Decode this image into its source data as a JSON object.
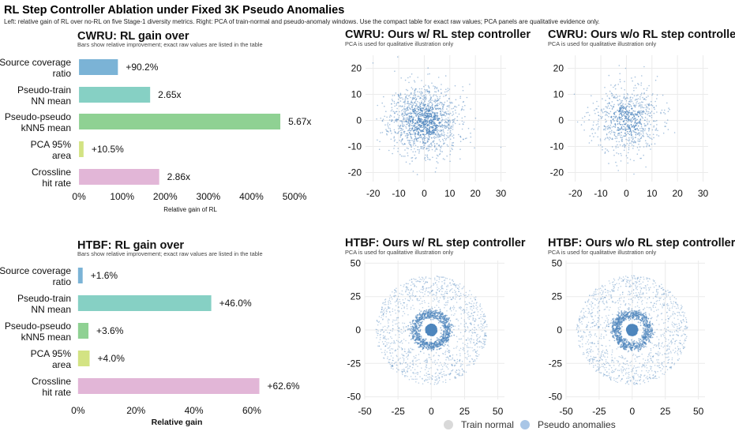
{
  "figure": {
    "title": "RL Step Controller Ablation under Fixed 3K Pseudo Anomalies",
    "subtitle": "Left: relative gain of RL over no-RL on five Stage-1 diversity metrics. Right: PCA of train-normal and pseudo-anomaly windows. Use the compact table for exact raw values; PCA panels are qualitative evidence only."
  },
  "colors": {
    "metrics": [
      "#7bb3d6",
      "#86d0c4",
      "#8fd193",
      "#d3e383",
      "#e2b6d7"
    ],
    "train_normal": "#d9d9d9",
    "pseudo_anomalies": "#4f86bd"
  },
  "legend": {
    "items": [
      {
        "label": "Train normal",
        "color": "#d9d9d9"
      },
      {
        "label": "Pseudo anomalies",
        "color": "#a9c6e6"
      }
    ]
  },
  "chart_data": [
    {
      "type": "bar",
      "orientation": "horizontal",
      "title": "CWRU: RL gain over",
      "subtitle": "Bars show relative improvement; exact raw values are listed in the table",
      "categories": [
        "Source coverage ratio",
        "Pseudo-train NN mean",
        "Pseudo-pseudo kNN5 mean",
        "PCA 95% area",
        "Crossline hit rate"
      ],
      "category_lines": [
        [
          "Source coverage",
          "ratio"
        ],
        [
          "Pseudo-train",
          "NN mean"
        ],
        [
          "Pseudo-pseudo",
          "kNN5 mean"
        ],
        [
          "PCA 95%",
          "area"
        ],
        [
          "Crossline",
          "hit rate"
        ]
      ],
      "values": [
        90.2,
        165,
        467,
        10.5,
        186
      ],
      "value_labels": [
        "+90.2%",
        "2.65x",
        "5.67x",
        "+10.5%",
        "2.86x"
      ],
      "xlabel": "Relative gain of RL",
      "xlim": [
        -2,
        520
      ],
      "xticks": [
        0,
        100,
        200,
        300,
        400,
        500
      ],
      "xtick_labels": [
        "0%",
        "100%",
        "200%",
        "300%",
        "400%",
        "500%"
      ],
      "grid": false
    },
    {
      "type": "bar",
      "orientation": "horizontal",
      "title": "HTBF: RL gain over",
      "subtitle": "Bars show relative improvement; exact raw values are listed in the table",
      "categories": [
        "Source coverage ratio",
        "Pseudo-train NN mean",
        "Pseudo-pseudo kNN5 mean",
        "PCA 95% area",
        "Crossline hit rate"
      ],
      "category_lines": [
        [
          "Source coverage",
          "ratio"
        ],
        [
          "Pseudo-train",
          "NN mean"
        ],
        [
          "Pseudo-pseudo",
          "kNN5 mean"
        ],
        [
          "PCA 95%",
          "area"
        ],
        [
          "Crossline",
          "hit rate"
        ]
      ],
      "values": [
        1.6,
        46.0,
        3.6,
        4.0,
        62.6
      ],
      "value_labels": [
        "+1.6%",
        "+46.0%",
        "+3.6%",
        "+4.0%",
        "+62.6%"
      ],
      "xlabel": "Relative gain",
      "xlim": [
        -0.5,
        69
      ],
      "xticks": [
        0,
        20,
        40,
        60
      ],
      "xtick_labels": [
        "0%",
        "20%",
        "40%",
        "60%"
      ],
      "grid": false
    },
    {
      "type": "scatter",
      "title": "CWRU: Ours w/ RL step controller",
      "subtitle": "PCA is used for qualitative illustration only",
      "xlim": [
        -23,
        32
      ],
      "ylim": [
        -23.5,
        25
      ],
      "xticks": [
        -20,
        -10,
        0,
        10,
        20,
        30
      ],
      "yticks": [
        -20,
        -10,
        0,
        10,
        20
      ],
      "grid": true,
      "series": [
        {
          "name": "Pseudo anomalies",
          "distribution": "gaussian cloud",
          "center": [
            0,
            0
          ],
          "spread": [
            6.5,
            6.5
          ],
          "n": 1500
        }
      ]
    },
    {
      "type": "scatter",
      "title": "CWRU: Ours w/o RL step controller",
      "subtitle": "PCA is used for qualitative illustration only",
      "xlim": [
        -23,
        32
      ],
      "ylim": [
        -23.5,
        25
      ],
      "xticks": [
        -20,
        -10,
        0,
        10,
        20,
        30
      ],
      "yticks": [
        -20,
        -10,
        0,
        10,
        20
      ],
      "grid": true,
      "series": [
        {
          "name": "Pseudo anomalies",
          "distribution": "gaussian cloud",
          "center": [
            0,
            0
          ],
          "spread": [
            6.5,
            6.5
          ],
          "n": 800
        }
      ]
    },
    {
      "type": "scatter",
      "title": "HTBF: Ours w/ RL step controller",
      "subtitle": "PCA is used for qualitative illustration only",
      "xlim": [
        -50,
        55
      ],
      "ylim": [
        -52,
        52
      ],
      "xticks": [
        -50,
        -25,
        0,
        25,
        50
      ],
      "yticks": [
        -50,
        -25,
        0,
        25,
        50
      ],
      "grid": true,
      "series": [
        {
          "name": "Train normal",
          "distribution": "dense disc",
          "center": [
            0,
            0
          ],
          "radius": 4,
          "n": 350
        },
        {
          "name": "Pseudo anomalies",
          "distribution": "ring + halo",
          "center": [
            0,
            0
          ],
          "ring_radius": [
            10,
            15
          ],
          "halo_radius": [
            15,
            42
          ],
          "n": 2100
        }
      ]
    },
    {
      "type": "scatter",
      "title": "HTBF: Ours w/o RL step controller",
      "subtitle": "PCA is used for qualitative illustration only",
      "xlim": [
        -50,
        55
      ],
      "ylim": [
        -52,
        52
      ],
      "xticks": [
        -50,
        -25,
        0,
        25,
        50
      ],
      "yticks": [
        -50,
        -25,
        0,
        25,
        50
      ],
      "grid": true,
      "series": [
        {
          "name": "Train normal",
          "distribution": "dense disc",
          "center": [
            0,
            0
          ],
          "radius": 4,
          "n": 350
        },
        {
          "name": "Pseudo anomalies",
          "distribution": "ring + halo",
          "center": [
            0,
            0
          ],
          "ring_radius": [
            10,
            15
          ],
          "halo_radius": [
            15,
            42
          ],
          "n": 2100
        }
      ]
    }
  ]
}
